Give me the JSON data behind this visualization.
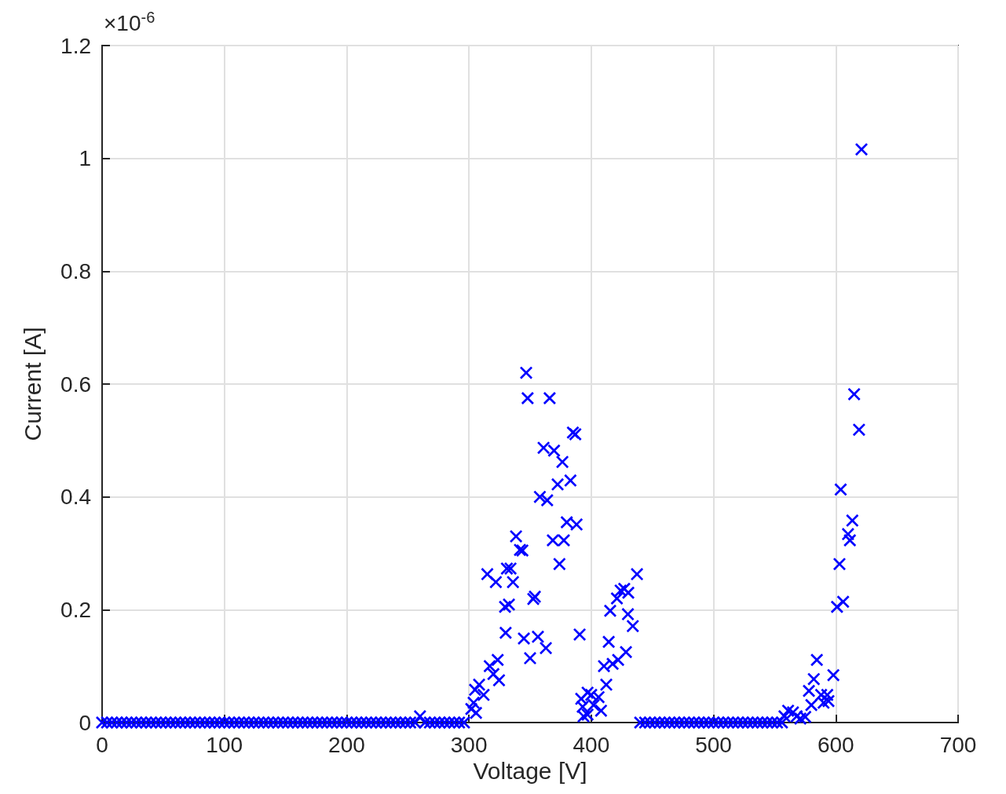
{
  "chart_data": {
    "type": "scatter",
    "xlabel": "Voltage [V]",
    "ylabel": "Current [A]",
    "annotations": [
      "×10$^{-6}$"
    ],
    "xlim": [
      0,
      700
    ],
    "xticks": [
      0,
      100,
      200,
      300,
      400,
      500,
      600,
      700
    ],
    "ylim": [
      0,
      1.2
    ],
    "yticks": [
      0,
      0.2,
      0.4,
      0.6,
      0.8,
      1,
      1.2
    ],
    "grid": true,
    "marker": "cross",
    "series": [
      {
        "color": "#0000ff",
        "x": [
          0,
          4,
          8,
          12,
          16,
          20,
          24,
          28,
          32,
          36,
          40,
          44,
          48,
          52,
          56,
          60,
          64,
          68,
          72,
          76,
          80,
          84,
          88,
          92,
          96,
          100,
          104,
          108,
          112,
          116,
          120,
          124,
          128,
          132,
          136,
          140,
          144,
          148,
          152,
          156,
          160,
          164,
          168,
          172,
          176,
          180,
          184,
          188,
          192,
          196,
          200,
          204,
          208,
          212,
          216,
          220,
          224,
          228,
          232,
          236,
          240,
          244,
          248,
          252,
          256,
          264,
          268,
          272,
          276,
          280,
          284,
          288,
          292,
          296,
          440,
          444,
          448,
          452,
          456,
          460,
          464,
          468,
          472,
          476,
          480,
          484,
          488,
          492,
          496,
          500,
          504,
          508,
          512,
          516,
          520,
          524,
          528,
          532,
          536,
          540,
          544,
          548,
          552,
          556,
          260,
          301.9,
          303.8,
          305,
          305.8,
          308.3,
          312,
          317,
          320,
          323.5,
          324.6,
          315,
          322,
          331,
          334,
          336,
          329.5,
          332.7,
          330,
          338.5,
          341.7,
          343.7,
          346.8,
          348,
          344.9,
          350,
          352.6,
          353.9,
          356.4,
          358,
          361,
          362.9,
          364,
          366,
          368.6,
          369.6,
          372.5,
          374,
          376.4,
          377.6,
          380,
          383,
          385,
          387,
          388,
          390.5,
          391.8,
          393,
          393.7,
          397,
          397,
          400,
          402,
          406,
          408,
          410.4,
          412.3,
          414.3,
          415.5,
          417.5,
          421,
          422,
          424,
          427,
          428.4,
          430,
          430.3,
          434,
          437.4,
          558,
          561,
          565,
          568,
          571,
          575,
          578,
          580,
          582,
          584.5,
          588,
          590,
          593,
          594,
          598,
          601,
          603,
          604,
          606,
          610,
          611.5,
          613.5,
          615,
          619,
          621
        ],
        "values": [
          0,
          0,
          0,
          0,
          0,
          0,
          0,
          0,
          0,
          0,
          0,
          0,
          0,
          0,
          0,
          0,
          0,
          0,
          0,
          0,
          0,
          0,
          0,
          0,
          0,
          0,
          0,
          0,
          0,
          0,
          0,
          0,
          0,
          0,
          0,
          0,
          0,
          0,
          0,
          0,
          0,
          0,
          0,
          0,
          0,
          0,
          0,
          0,
          0,
          0,
          0,
          0,
          0,
          0,
          0,
          0,
          0,
          0,
          0,
          0,
          0,
          0,
          0,
          0,
          0,
          0,
          0,
          0,
          0,
          0,
          0,
          0,
          0,
          0,
          0,
          0,
          0,
          0,
          0,
          0,
          0,
          0,
          0,
          0,
          0,
          0,
          0,
          0,
          0,
          0,
          0,
          0,
          0,
          0,
          0,
          0,
          0,
          0,
          0,
          0,
          0,
          0,
          0,
          0,
          0.011,
          0.024,
          0.035,
          0.058,
          0.017,
          0.067,
          0.049,
          0.1,
          0.086,
          0.111,
          0.075,
          0.263,
          0.249,
          0.273,
          0.273,
          0.249,
          0.205,
          0.209,
          0.159,
          0.33,
          0.306,
          0.305,
          0.62,
          0.575,
          0.149,
          0.114,
          0.219,
          0.223,
          0.152,
          0.4,
          0.487,
          0.132,
          0.394,
          0.575,
          0.323,
          0.482,
          0.422,
          0.281,
          0.462,
          0.323,
          0.355,
          0.429,
          0.514,
          0.511,
          0.351,
          0.156,
          0.042,
          0.028,
          0.011,
          0.053,
          0.014,
          0.049,
          0.031,
          0.045,
          0.021,
          0.1,
          0.067,
          0.143,
          0.198,
          0.104,
          0.22,
          0.111,
          0.234,
          0.237,
          0.125,
          0.192,
          0.23,
          0.171,
          0.263,
          0.011,
          0.021,
          0.018,
          0.011,
          0.007,
          0.01,
          0.056,
          0.031,
          0.077,
          0.111,
          0.049,
          0.035,
          0.049,
          0.038,
          0.084,
          0.205,
          0.281,
          0.413,
          0.214,
          0.334,
          0.323,
          0.358,
          0.582,
          0.519,
          1.016
        ]
      }
    ]
  }
}
